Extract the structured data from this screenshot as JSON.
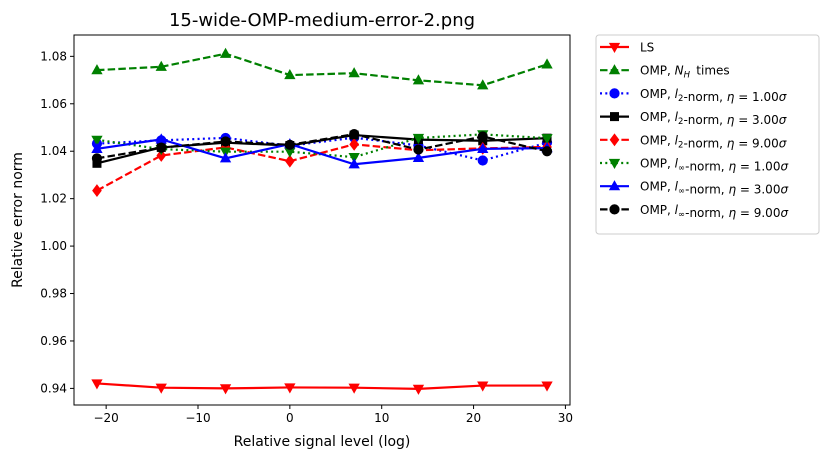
{
  "chart_data": {
    "type": "line",
    "title": "15-wide-OMP-medium-error-2.png",
    "xlabel": "Relative signal level (log)",
    "ylabel": "Relative error norm",
    "xlim": [
      -23.5,
      30.5
    ],
    "ylim": [
      0.933,
      1.089
    ],
    "xticks": [
      -20,
      -10,
      0,
      10,
      20,
      30
    ],
    "xtick_labels": [
      "−20",
      "−10",
      "0",
      "10",
      "20",
      "30"
    ],
    "yticks": [
      0.94,
      0.96,
      0.98,
      1.0,
      1.02,
      1.04,
      1.06,
      1.08
    ],
    "ytick_labels": [
      "0.94",
      "0.96",
      "0.98",
      "1.00",
      "1.02",
      "1.04",
      "1.06",
      "1.08"
    ],
    "grid": false,
    "legend_placement": "outside-right",
    "x": [
      -21,
      -14,
      -7,
      0,
      7,
      14,
      21,
      28
    ],
    "series": [
      {
        "name": "LS",
        "color": "#ff0000",
        "dash": "solid",
        "marker": "triangle-down",
        "values": [
          0.9421,
          0.9403,
          0.94,
          0.9404,
          0.9403,
          0.9398,
          0.9412,
          0.9412
        ]
      },
      {
        "name": "OMP, N_H times",
        "color": "#008000",
        "dash": "dashed",
        "marker": "triangle-up",
        "values": [
          1.0742,
          1.0756,
          1.0811,
          1.0721,
          1.0729,
          1.0699,
          1.0678,
          1.0766
        ]
      },
      {
        "name": "OMP, l_2-norm, η = 1.00σ",
        "color": "#0000ff",
        "dash": "dotted",
        "marker": "circle",
        "values": [
          1.0432,
          1.0446,
          1.0456,
          1.0423,
          1.0457,
          1.0424,
          1.0361,
          1.0436
        ]
      },
      {
        "name": "OMP, l_2-norm, η = 3.00σ",
        "color": "#000000",
        "dash": "solid",
        "marker": "square",
        "values": [
          1.0349,
          1.0416,
          1.0436,
          1.0424,
          1.0468,
          1.0449,
          1.0444,
          1.0455
        ]
      },
      {
        "name": "OMP, l_2-norm, η = 9.00σ",
        "color": "#ff0000",
        "dash": "dashed",
        "marker": "diamond",
        "values": [
          1.0234,
          1.0382,
          1.0416,
          1.0358,
          1.0429,
          1.0404,
          1.0412,
          1.0418
        ]
      },
      {
        "name": "OMP, l_∞-norm, η = 1.00σ",
        "color": "#008000",
        "dash": "dotted",
        "marker": "triangle-down",
        "values": [
          1.0448,
          1.0409,
          1.0398,
          1.0398,
          1.0375,
          1.0456,
          1.0471,
          1.0455
        ]
      },
      {
        "name": "OMP, l_∞-norm, η = 3.00σ",
        "color": "#0000ff",
        "dash": "solid",
        "marker": "triangle-up",
        "values": [
          1.041,
          1.045,
          1.037,
          1.043,
          1.0345,
          1.0372,
          1.041,
          1.0413
        ]
      },
      {
        "name": "OMP, l_∞-norm, η = 9.00σ",
        "color": "#000000",
        "dash": "dashed",
        "marker": "circle",
        "values": [
          1.037,
          1.0415,
          1.0441,
          1.0427,
          1.0472,
          1.0407,
          1.0462,
          1.04
        ]
      }
    ]
  }
}
